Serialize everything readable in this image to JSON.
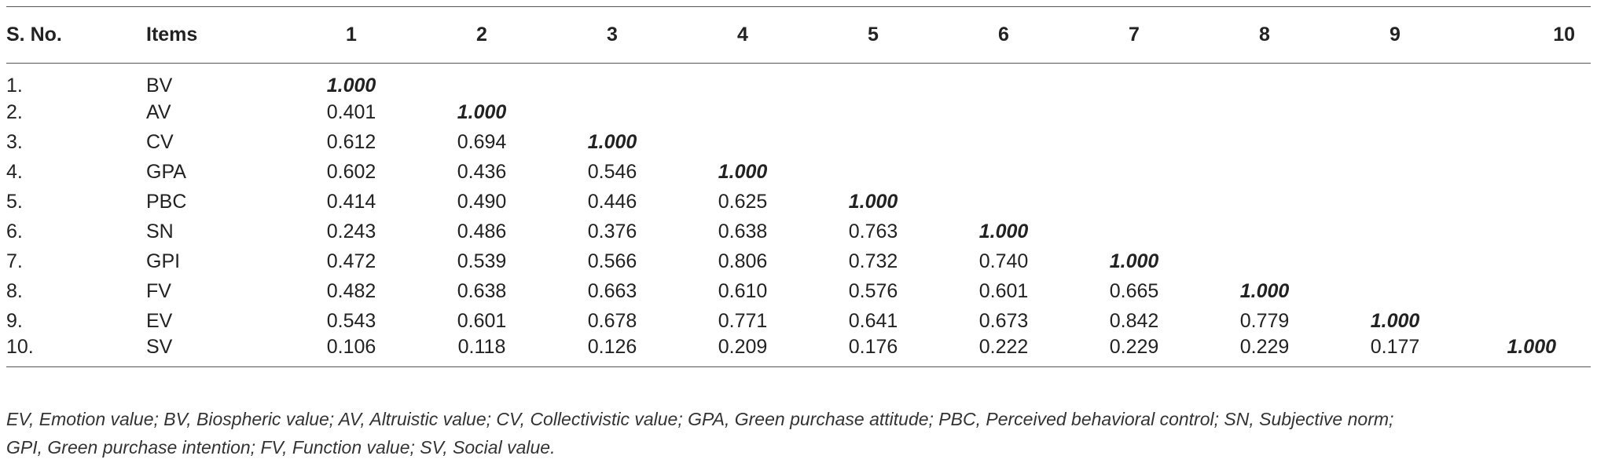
{
  "table": {
    "headers": [
      "S. No.",
      "Items",
      "1",
      "2",
      "3",
      "4",
      "5",
      "6",
      "7",
      "8",
      "9",
      "10"
    ],
    "rows": [
      {
        "sno": "1.",
        "item": "BV",
        "values": [
          "1.000",
          "",
          "",
          "",
          "",
          "",
          "",
          "",
          "",
          ""
        ]
      },
      {
        "sno": "2.",
        "item": "AV",
        "values": [
          "0.401",
          "1.000",
          "",
          "",
          "",
          "",
          "",
          "",
          "",
          ""
        ]
      },
      {
        "sno": "3.",
        "item": "CV",
        "values": [
          "0.612",
          "0.694",
          "1.000",
          "",
          "",
          "",
          "",
          "",
          "",
          ""
        ]
      },
      {
        "sno": "4.",
        "item": "GPA",
        "values": [
          "0.602",
          "0.436",
          "0.546",
          "1.000",
          "",
          "",
          "",
          "",
          "",
          ""
        ]
      },
      {
        "sno": "5.",
        "item": "PBC",
        "values": [
          "0.414",
          "0.490",
          "0.446",
          "0.625",
          "1.000",
          "",
          "",
          "",
          "",
          ""
        ]
      },
      {
        "sno": "6.",
        "item": "SN",
        "values": [
          "0.243",
          "0.486",
          "0.376",
          "0.638",
          "0.763",
          "1.000",
          "",
          "",
          "",
          ""
        ]
      },
      {
        "sno": "7.",
        "item": "GPI",
        "values": [
          "0.472",
          "0.539",
          "0.566",
          "0.806",
          "0.732",
          "0.740",
          "1.000",
          "",
          "",
          ""
        ]
      },
      {
        "sno": "8.",
        "item": "FV",
        "values": [
          "0.482",
          "0.638",
          "0.663",
          "0.610",
          "0.576",
          "0.601",
          "0.665",
          "1.000",
          "",
          ""
        ]
      },
      {
        "sno": "9.",
        "item": "EV",
        "values": [
          "0.543",
          "0.601",
          "0.678",
          "0.771",
          "0.641",
          "0.673",
          "0.842",
          "0.779",
          "1.000",
          ""
        ]
      },
      {
        "sno": "10.",
        "item": "SV",
        "values": [
          "0.106",
          "0.118",
          "0.126",
          "0.209",
          "0.176",
          "0.222",
          "0.229",
          "0.229",
          "0.177",
          "1.000"
        ]
      }
    ]
  },
  "footnote": {
    "line1": "EV, Emotion value; BV, Biospheric value; AV, Altruistic value; CV, Collectivistic value; GPA, Green purchase attitude; PBC, Perceived behavioral control; SN, Subjective norm;",
    "line2": "GPI, Green purchase intention; FV, Function value; SV, Social value."
  }
}
